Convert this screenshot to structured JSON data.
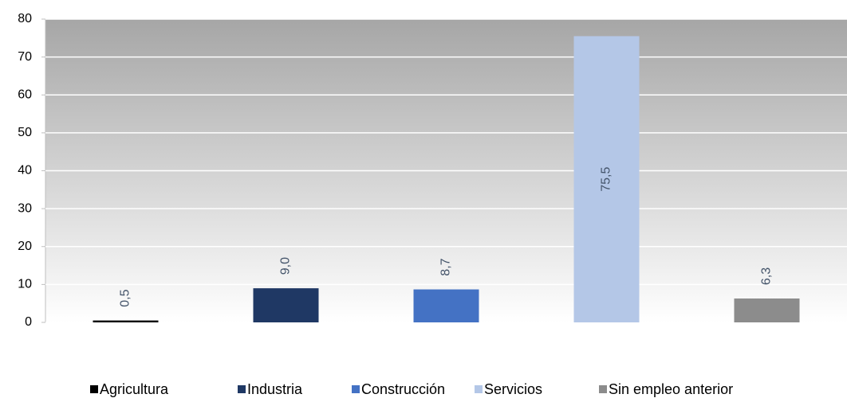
{
  "chart_data": {
    "type": "bar",
    "categories": [
      "Agricultura",
      "Industria",
      "Construcción",
      "Servicios",
      "Sin empleo anterior"
    ],
    "values": [
      0.5,
      9.0,
      8.7,
      75.5,
      6.3
    ],
    "value_labels": [
      "0,5",
      "9,0",
      "8,7",
      "75,5",
      "6,3"
    ],
    "colors": [
      "#000000",
      "#1f3864",
      "#4472c4",
      "#b4c7e7",
      "#8c8c8c"
    ],
    "ylim": [
      0,
      80
    ],
    "yticks": [
      0,
      10,
      20,
      30,
      40,
      50,
      60,
      70,
      80
    ],
    "grid": true,
    "legend": "bottom"
  }
}
